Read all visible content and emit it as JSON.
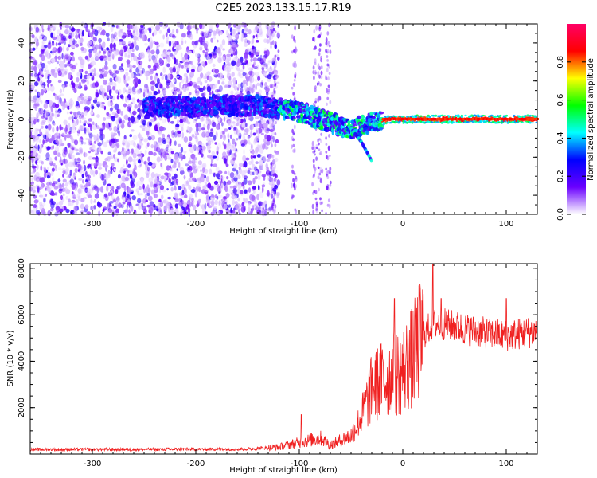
{
  "title": "C2E5.2023.133.15.17.R19",
  "chart_data": [
    {
      "type": "heatmap",
      "name": "spectrogram",
      "xlabel": "Height of straight line (km)",
      "ylabel": "Frequency (Hz)",
      "xlim": [
        -360,
        130
      ],
      "ylim": [
        -50,
        50
      ],
      "xticks": [
        -300,
        -200,
        -100,
        0,
        100
      ],
      "yticks": [
        -40,
        -20,
        0,
        20,
        40
      ],
      "colorbar": {
        "label": "Normalized spectral amplitude",
        "range": [
          0.0,
          1.0
        ],
        "ticks": [
          "0.0",
          "0.2",
          "0.4",
          "0.6",
          "0.8"
        ],
        "tick_values": [
          0.0,
          0.2,
          0.4,
          0.6,
          0.8
        ],
        "colormap": [
          "#ffffff",
          "#6a00ff",
          "#0000ff",
          "#00ffff",
          "#00ff00",
          "#ffff00",
          "#ff0000",
          "#ff0066"
        ]
      },
      "features": {
        "noise_region_x": [
          -360,
          -130
        ],
        "signal_band_center_hz": 0,
        "signal_strong_from_x": -20,
        "signal_curve": [
          [
            -250,
            6
          ],
          [
            -180,
            7
          ],
          [
            -140,
            7
          ],
          [
            -110,
            5
          ],
          [
            -90,
            2
          ],
          [
            -70,
            -2
          ],
          [
            -50,
            -5
          ],
          [
            -30,
            -2
          ],
          [
            -10,
            0
          ],
          [
            0,
            0
          ],
          [
            130,
            0
          ]
        ],
        "side_branch": [
          [
            -50,
            -5
          ],
          [
            -40,
            -12
          ],
          [
            -30,
            -22
          ]
        ]
      }
    },
    {
      "type": "line",
      "name": "snr",
      "xlabel": "Height of straight line (km)",
      "ylabel": "SNR (10 * v/v)",
      "xlim": [
        -360,
        130
      ],
      "ylim": [
        0,
        8200
      ],
      "xticks": [
        -300,
        -200,
        -100,
        0,
        100
      ],
      "yticks": [
        2000,
        4000,
        6000,
        8000
      ],
      "color": "#f02020",
      "series": [
        {
          "name": "SNR",
          "envelope": [
            {
              "x": -360,
              "y": 200
            },
            {
              "x": -250,
              "y": 200
            },
            {
              "x": -150,
              "y": 220
            },
            {
              "x": -120,
              "y": 300
            },
            {
              "x": -100,
              "y": 500
            },
            {
              "x": -80,
              "y": 700
            },
            {
              "x": -70,
              "y": 400
            },
            {
              "x": -50,
              "y": 800
            },
            {
              "x": -40,
              "y": 1600
            },
            {
              "x": -30,
              "y": 2800
            },
            {
              "x": -20,
              "y": 3200
            },
            {
              "x": -10,
              "y": 3400
            },
            {
              "x": 0,
              "y": 3600
            },
            {
              "x": 10,
              "y": 4200
            },
            {
              "x": 20,
              "y": 5200
            },
            {
              "x": 30,
              "y": 5600
            },
            {
              "x": 40,
              "y": 5600
            },
            {
              "x": 60,
              "y": 5400
            },
            {
              "x": 80,
              "y": 5200
            },
            {
              "x": 100,
              "y": 5100
            },
            {
              "x": 130,
              "y": 5300
            }
          ],
          "peaks": [
            {
              "x": -98,
              "y": 1700
            },
            {
              "x": -8,
              "y": 6700
            },
            {
              "x": 29,
              "y": 8200
            },
            {
              "x": 37,
              "y": 6700
            },
            {
              "x": 100,
              "y": 6700
            }
          ]
        }
      ]
    }
  ]
}
